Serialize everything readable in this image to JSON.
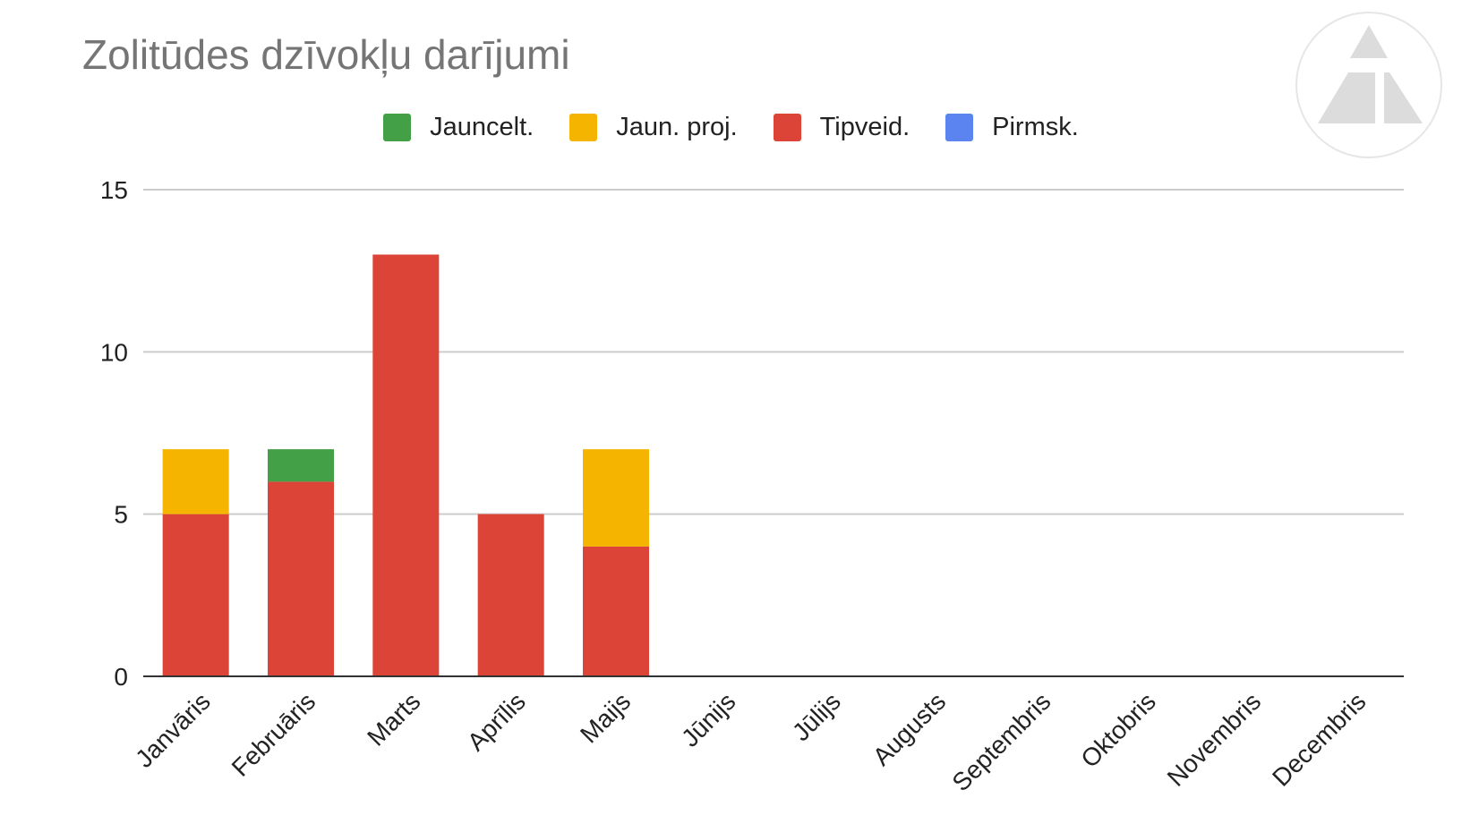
{
  "chart_data": {
    "type": "bar",
    "stacked": true,
    "title": "Zolitūdes dzīvokļu darījumi",
    "xlabel": "",
    "ylabel": "",
    "ylim": [
      0,
      15
    ],
    "yticks": [
      0,
      5,
      10,
      15
    ],
    "grid": true,
    "legend_position": "top",
    "categories": [
      "Janvāris",
      "Februāris",
      "Marts",
      "Aprīlis",
      "Maijs",
      "Jūnijs",
      "Jūlijs",
      "Augusts",
      "Septembris",
      "Oktobris",
      "Novembris",
      "Decembris"
    ],
    "series": [
      {
        "name": "Jauncelt.",
        "color": "#43a047",
        "values": [
          0,
          1,
          0,
          0,
          0,
          0,
          0,
          0,
          0,
          0,
          0,
          0
        ]
      },
      {
        "name": "Jaun. proj.",
        "color": "#f4b400",
        "values": [
          2,
          0,
          0,
          0,
          3,
          0,
          0,
          0,
          0,
          0,
          0,
          0
        ]
      },
      {
        "name": "Tipveid.",
        "color": "#db4437",
        "values": [
          5,
          6,
          13,
          5,
          4,
          0,
          0,
          0,
          0,
          0,
          0,
          0
        ]
      },
      {
        "name": "Pirmsk.",
        "color": "#5b84f0",
        "values": [
          0,
          0,
          0,
          0,
          0,
          0,
          0,
          0,
          0,
          0,
          0,
          0
        ]
      }
    ],
    "stack_order_bottom_to_top": [
      "Tipveid.",
      "Jaun. proj.",
      "Jauncelt.",
      "Pirmsk."
    ]
  },
  "logo": {
    "name": "triangle-logo-icon"
  }
}
